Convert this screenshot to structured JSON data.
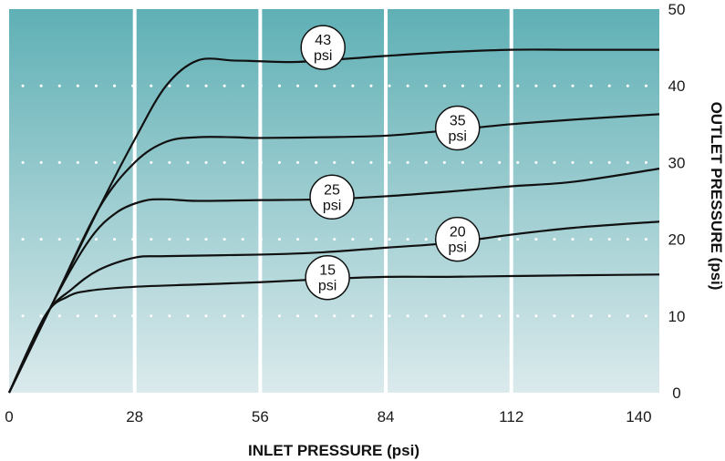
{
  "chart_data": {
    "type": "line",
    "xlabel": "INLET PRESSURE (psi)",
    "ylabel": "OUTLET PRESSURE (psi)",
    "xlim": [
      0,
      145
    ],
    "ylim": [
      0,
      50
    ],
    "x_ticks": [
      0,
      28,
      56,
      84,
      112,
      140
    ],
    "y_ticks": [
      0,
      10,
      20,
      30,
      40,
      50
    ],
    "x_tick_labels": [
      "0",
      "28",
      "56",
      "84",
      "112",
      "140"
    ],
    "y_tick_labels": [
      "0",
      "10",
      "20",
      "30",
      "40",
      "50"
    ],
    "grid": {
      "vertical": "solid white",
      "horizontal": "dotted white"
    },
    "colors": {
      "bg_top": "#5fb0b5",
      "bg_bottom": "#dbeaec",
      "line": "#111111",
      "grid": "#ffffff"
    },
    "series": [
      {
        "label_value": "43",
        "label_unit": "psi",
        "label_at": [
          70,
          45
        ],
        "x": [
          0,
          10,
          20,
          28,
          35,
          42,
          50,
          56,
          63,
          70,
          77,
          84,
          98,
          112,
          126,
          145
        ],
        "y": [
          0,
          12,
          24,
          33,
          40,
          43.3,
          43.3,
          43.2,
          43.1,
          43.3,
          43.6,
          43.9,
          44.4,
          44.7,
          44.7,
          44.7
        ]
      },
      {
        "label_value": "35",
        "label_unit": "psi",
        "label_at": [
          100,
          34.5
        ],
        "x": [
          0,
          10,
          20,
          28,
          35,
          42,
          50,
          56,
          70,
          84,
          98,
          112,
          126,
          145
        ],
        "y": [
          0,
          12,
          24,
          30,
          32.7,
          33.3,
          33.3,
          33.2,
          33.3,
          33.5,
          34.2,
          35,
          35.6,
          36.3
        ]
      },
      {
        "label_value": "25",
        "label_unit": "psi",
        "label_at": [
          72,
          25.5
        ],
        "x": [
          0,
          10,
          18,
          24,
          30,
          35,
          42,
          56,
          70,
          84,
          98,
          112,
          126,
          145
        ],
        "y": [
          0,
          12,
          20,
          23.5,
          25,
          25.2,
          25,
          25.1,
          25.2,
          25.6,
          26.2,
          26.9,
          27.5,
          29.2
        ]
      },
      {
        "label_value": "20",
        "label_unit": "psi",
        "label_at": [
          100,
          20
        ],
        "x": [
          0,
          8,
          14,
          20,
          28,
          35,
          56,
          70,
          84,
          98,
          112,
          126,
          145
        ],
        "y": [
          0,
          10,
          13.5,
          16,
          17.6,
          17.8,
          18,
          18.3,
          18.9,
          19.5,
          20.6,
          21.5,
          22.3
        ]
      },
      {
        "label_value": "15",
        "label_unit": "psi",
        "label_at": [
          71,
          15
        ],
        "x": [
          0,
          8,
          13,
          18,
          28,
          42,
          56,
          70,
          84,
          98,
          112,
          126,
          145
        ],
        "y": [
          0,
          10,
          12.5,
          13.3,
          13.8,
          14.1,
          14.4,
          14.8,
          15.1,
          15.1,
          15.2,
          15.3,
          15.4
        ]
      }
    ]
  }
}
